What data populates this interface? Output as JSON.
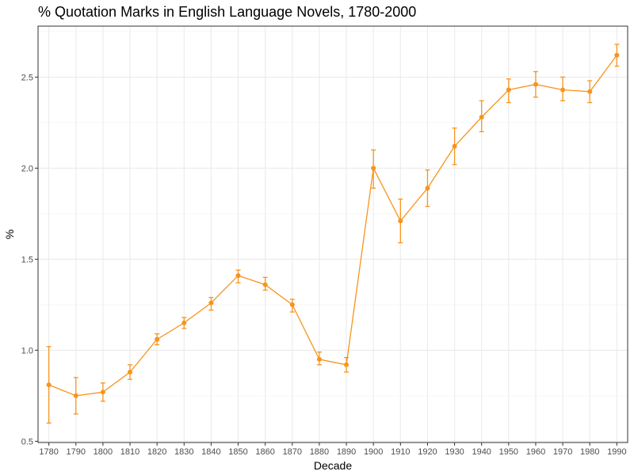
{
  "chart_data": {
    "type": "line",
    "title": "% Quotation Marks in English Language Novels, 1780-2000",
    "xlabel": "Decade",
    "ylabel": "%",
    "x": [
      1780,
      1790,
      1800,
      1810,
      1820,
      1830,
      1840,
      1850,
      1860,
      1870,
      1880,
      1890,
      1900,
      1910,
      1920,
      1930,
      1940,
      1950,
      1960,
      1970,
      1980,
      1990
    ],
    "x_tick_labels": [
      "1780",
      "1790",
      "1800",
      "1810",
      "1820",
      "1830",
      "1840",
      "1850",
      "1860",
      "1870",
      "1880",
      "1890",
      "1900",
      "1910",
      "1920",
      "1930",
      "1940",
      "1950",
      "1960",
      "1970",
      "1980",
      "1990"
    ],
    "xlim": [
      1776,
      1994
    ],
    "ylim": [
      0.493,
      2.78
    ],
    "y_ticks": [
      0.5,
      1.0,
      1.5,
      2.0,
      2.5
    ],
    "y_tick_labels": [
      "0.5",
      "1.0",
      "1.5",
      "2.0",
      "2.5"
    ],
    "grid": true,
    "legend": "none",
    "color": "#F7941D",
    "series": [
      {
        "values": [
          0.81,
          0.75,
          0.77,
          0.88,
          1.06,
          1.15,
          1.26,
          1.41,
          1.36,
          1.25,
          0.95,
          0.92,
          2.0,
          1.71,
          1.89,
          2.12,
          2.28,
          2.43,
          2.46,
          2.43,
          2.42,
          2.62
        ],
        "lower": [
          0.6,
          0.65,
          0.72,
          0.84,
          1.03,
          1.12,
          1.22,
          1.37,
          1.33,
          1.21,
          0.92,
          0.88,
          1.89,
          1.59,
          1.79,
          2.02,
          2.2,
          2.36,
          2.39,
          2.37,
          2.36,
          2.56
        ],
        "upper": [
          1.02,
          0.85,
          0.82,
          0.92,
          1.09,
          1.18,
          1.29,
          1.44,
          1.4,
          1.28,
          0.99,
          0.96,
          2.1,
          1.83,
          1.99,
          2.22,
          2.37,
          2.49,
          2.53,
          2.5,
          2.48,
          2.68
        ]
      }
    ]
  }
}
